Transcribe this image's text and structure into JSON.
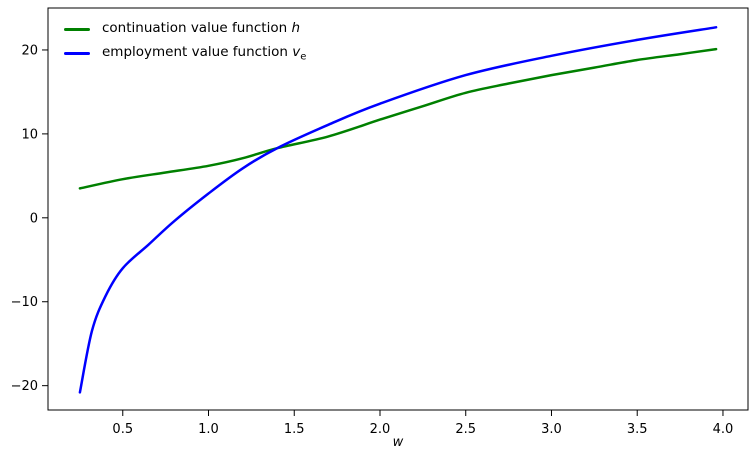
{
  "chart_data": {
    "type": "line",
    "title": "",
    "xlabel": "w",
    "ylabel": "",
    "grid": false,
    "background": "#ffffff",
    "legend_position": "upper-left",
    "xlim": [
      0.064,
      4.146
    ],
    "ylim": [
      -22.9,
      25.0
    ],
    "x_ticks": {
      "values": [
        0.5,
        1.0,
        1.5,
        2.0,
        2.5,
        3.0,
        3.5,
        4.0
      ],
      "labels": [
        "0.5",
        "1.0",
        "1.5",
        "2.0",
        "2.5",
        "3.0",
        "3.5",
        "4.0"
      ]
    },
    "y_ticks": {
      "values": [
        -20,
        -10,
        0,
        10,
        20
      ],
      "labels": [
        "−20",
        "−10",
        "0",
        "10",
        "20"
      ]
    },
    "series": [
      {
        "name": "continuation-value-h",
        "label_text": "continuation value function",
        "label_math": "h",
        "label_sub": "",
        "color": "#008000",
        "line_width": 2.5,
        "points": [
          [
            0.25,
            3.5
          ],
          [
            0.5,
            4.6
          ],
          [
            0.75,
            5.4
          ],
          [
            1.0,
            6.2
          ],
          [
            1.2,
            7.1
          ],
          [
            1.4,
            8.3
          ],
          [
            1.7,
            9.7
          ],
          [
            2.0,
            11.7
          ],
          [
            2.25,
            13.3
          ],
          [
            2.5,
            14.9
          ],
          [
            2.75,
            16.0
          ],
          [
            3.0,
            17.0
          ],
          [
            3.25,
            17.9
          ],
          [
            3.5,
            18.8
          ],
          [
            3.75,
            19.5
          ],
          [
            3.96,
            20.1
          ]
        ]
      },
      {
        "name": "employment-value-ve",
        "label_text": "employment value function",
        "label_math": "v",
        "label_sub": "e",
        "color": "#0000ff",
        "line_width": 2.5,
        "points": [
          [
            0.25,
            -20.8
          ],
          [
            0.32,
            -13.5
          ],
          [
            0.4,
            -9.3
          ],
          [
            0.5,
            -6.0
          ],
          [
            0.65,
            -3.2
          ],
          [
            0.8,
            -0.4
          ],
          [
            1.0,
            2.9
          ],
          [
            1.2,
            5.9
          ],
          [
            1.4,
            8.3
          ],
          [
            1.7,
            11.1
          ],
          [
            2.0,
            13.6
          ],
          [
            2.5,
            17.0
          ],
          [
            3.0,
            19.3
          ],
          [
            3.5,
            21.2
          ],
          [
            3.96,
            22.7
          ]
        ]
      }
    ]
  }
}
